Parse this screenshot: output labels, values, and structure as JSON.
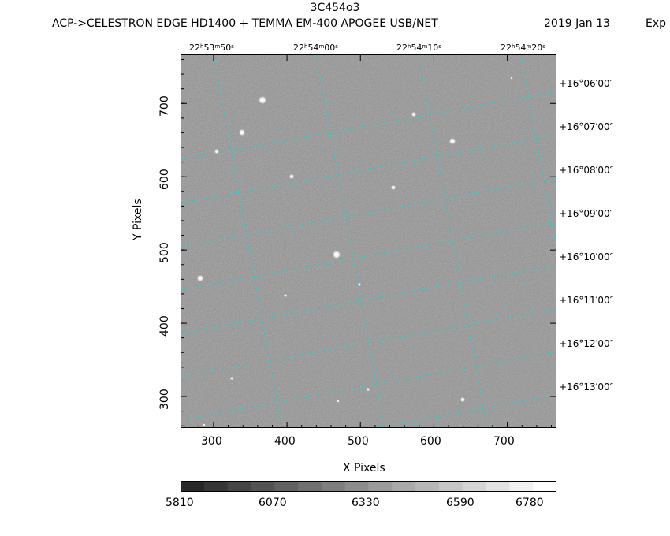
{
  "header": {
    "title": "3C454o3",
    "subtitle": "ACP->CELESTRON EDGE HD1400 + TEMMA EM-400 APOGEE USB/NET",
    "date": "2019 Jan 13",
    "exposure_fragment": "Exp"
  },
  "axes": {
    "xlabel": "X Pixels",
    "ylabel": "Y Pixels",
    "x_ticks": [
      "300",
      "400",
      "500",
      "600",
      "700"
    ],
    "y_ticks": [
      "700",
      "600",
      "500",
      "400",
      "300"
    ],
    "x_range": [
      255,
      767
    ],
    "y_range": [
      257,
      767
    ]
  },
  "ra_labels": [
    {
      "h": "22",
      "m": "53",
      "s": "50"
    },
    {
      "h": "22",
      "m": "54",
      "s": "00"
    },
    {
      "h": "22",
      "m": "54",
      "s": "10"
    },
    {
      "h": "22",
      "m": "54",
      "s": "20"
    }
  ],
  "dec_labels": [
    "+16°06′00″",
    "+16°07′00″",
    "+16°08′00″",
    "+16°09′00″",
    "+16°10′00″",
    "+16°11′00″",
    "+16°12′00″",
    "+16°13′00″"
  ],
  "colorbar": {
    "ticks": [
      "5810",
      "6070",
      "6330",
      "6590",
      "6780"
    ]
  },
  "colors": {
    "grid": "#36c8c8",
    "background_sky": "#8d8d8d"
  }
}
